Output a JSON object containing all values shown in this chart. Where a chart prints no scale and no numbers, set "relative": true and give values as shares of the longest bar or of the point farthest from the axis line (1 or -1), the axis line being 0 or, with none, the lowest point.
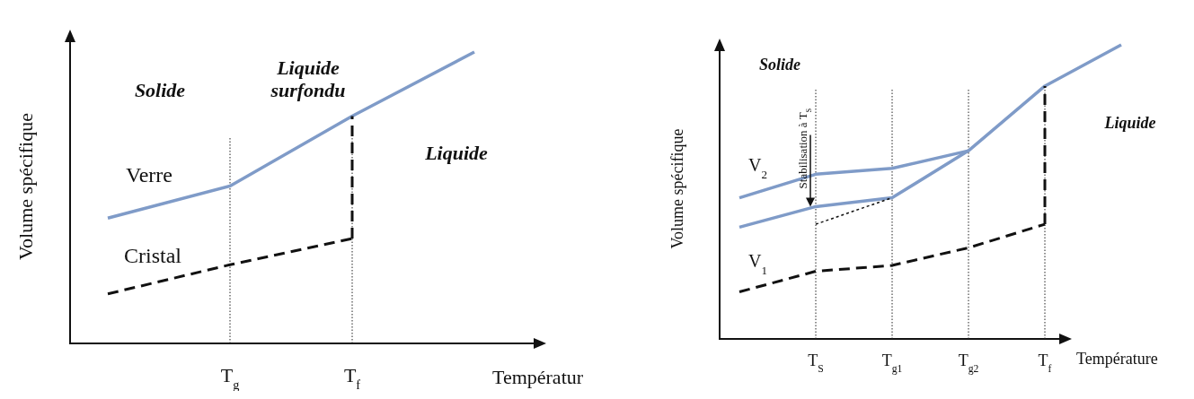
{
  "chart_data": [
    {
      "type": "line",
      "relative": true,
      "xlabel": "Températur",
      "ylabel": "Volume spécifique",
      "grid": "x",
      "categories": [
        null,
        "T$_{g}$",
        "T$_{f}$",
        null
      ],
      "annotations": [
        "Solide",
        "Liquide surfondu",
        "Liquide"
      ],
      "series": [
        {
          "name": "Verre",
          "color": "#7f9bc8",
          "line_style": "solid",
          "values": [
            0.43,
            0.54,
            0.78,
            1
          ]
        },
        {
          "name": "Cristal",
          "color": "#111111",
          "line_style": "dashed",
          "values": [
            0.17,
            0.27,
            0.36,
            null
          ]
        }
      ]
    },
    {
      "type": "line",
      "relative": true,
      "xlabel": "Température",
      "ylabel": "Volume spécifique",
      "grid": "x",
      "categories": [
        null,
        "T$_{S}$",
        "T$_{g1}$",
        "T$_{g2}$",
        "T$_{f}$",
        null
      ],
      "annotations": [
        "Solide",
        "Liquide",
        {
          "text": "Stabilisation à T$_{S}$",
          "x": "T$_{S}$",
          "y": 0.45
        }
      ],
      "series": [
        {
          "name": "V$_{2}$",
          "color": "#7f9bc8",
          "line_style": "solid",
          "values": [
            0.48,
            0.56,
            0.58,
            0.64,
            0.86,
            1
          ]
        },
        {
          "name": "V$_{1}$",
          "color": "#7f9bc8",
          "line_style": "solid",
          "values": [
            0.38,
            0.45,
            0.48,
            0.64,
            null,
            null
          ]
        },
        {
          "color": "#111111",
          "line_style": "dashed",
          "values": [
            0.16,
            0.23,
            0.25,
            0.31,
            0.39,
            null
          ]
        },
        {
          "color": "#111111",
          "line_style": "dotted",
          "values": [
            null,
            0.39,
            0.48,
            null,
            null,
            null
          ]
        }
      ]
    }
  ]
}
